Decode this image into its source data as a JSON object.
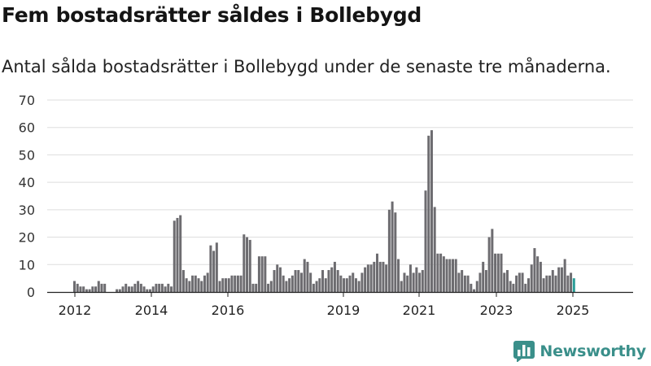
{
  "header": {
    "title": "Fem bostadsrätter såldes i Bollebygd",
    "subtitle": "Antal sålda bostadsrätter i Bollebygd under de senaste tre månaderna."
  },
  "brand": {
    "name": "Newsworthy",
    "icon": "newsworthy-logo-icon",
    "color": "#3a8f8a"
  },
  "chart_data": {
    "type": "bar",
    "title": "Fem bostadsrätter såldes i Bollebygd",
    "subtitle": "Antal sålda bostadsrätter i Bollebygd under de senaste tre månaderna.",
    "xlabel": "",
    "ylabel": "",
    "ylim": [
      0,
      70
    ],
    "yticks": [
      0,
      10,
      20,
      30,
      40,
      50,
      60,
      70
    ],
    "xticks": [
      "2012",
      "2014",
      "2016",
      "2019",
      "2021",
      "2023",
      "2025"
    ],
    "grid": true,
    "colors": {
      "bar": "#6d6c70",
      "highlight": "#2a9d98",
      "grid": "#dddddd"
    },
    "annotation": {
      "label": "5",
      "index": 179
    },
    "values": [
      4,
      3,
      2,
      2,
      1,
      1,
      2,
      2,
      4,
      3,
      3,
      0,
      0,
      0,
      1,
      1,
      2,
      3,
      2,
      2,
      3,
      4,
      3,
      2,
      1,
      1,
      2,
      3,
      3,
      3,
      2,
      3,
      2,
      26,
      27,
      28,
      8,
      5,
      4,
      6,
      6,
      5,
      4,
      6,
      7,
      17,
      15,
      18,
      4,
      5,
      5,
      5,
      6,
      6,
      6,
      6,
      21,
      20,
      19,
      3,
      3,
      13,
      13,
      13,
      3,
      4,
      8,
      10,
      9,
      6,
      4,
      5,
      6,
      8,
      8,
      7,
      12,
      11,
      7,
      3,
      4,
      5,
      8,
      5,
      8,
      9,
      11,
      8,
      6,
      5,
      5,
      6,
      7,
      5,
      4,
      7,
      9,
      10,
      10,
      11,
      14,
      11,
      11,
      10,
      30,
      33,
      29,
      12,
      4,
      7,
      6,
      10,
      7,
      9,
      7,
      8,
      37,
      57,
      59,
      31,
      14,
      14,
      13,
      12,
      12,
      12,
      12,
      7,
      8,
      6,
      6,
      3,
      1,
      4,
      7,
      11,
      8,
      20,
      23,
      14,
      14,
      14,
      7,
      8,
      4,
      3,
      6,
      7,
      7,
      3,
      5,
      10,
      16,
      13,
      11,
      5,
      6,
      6,
      8,
      6,
      9,
      9,
      12,
      6,
      7,
      5
    ]
  }
}
